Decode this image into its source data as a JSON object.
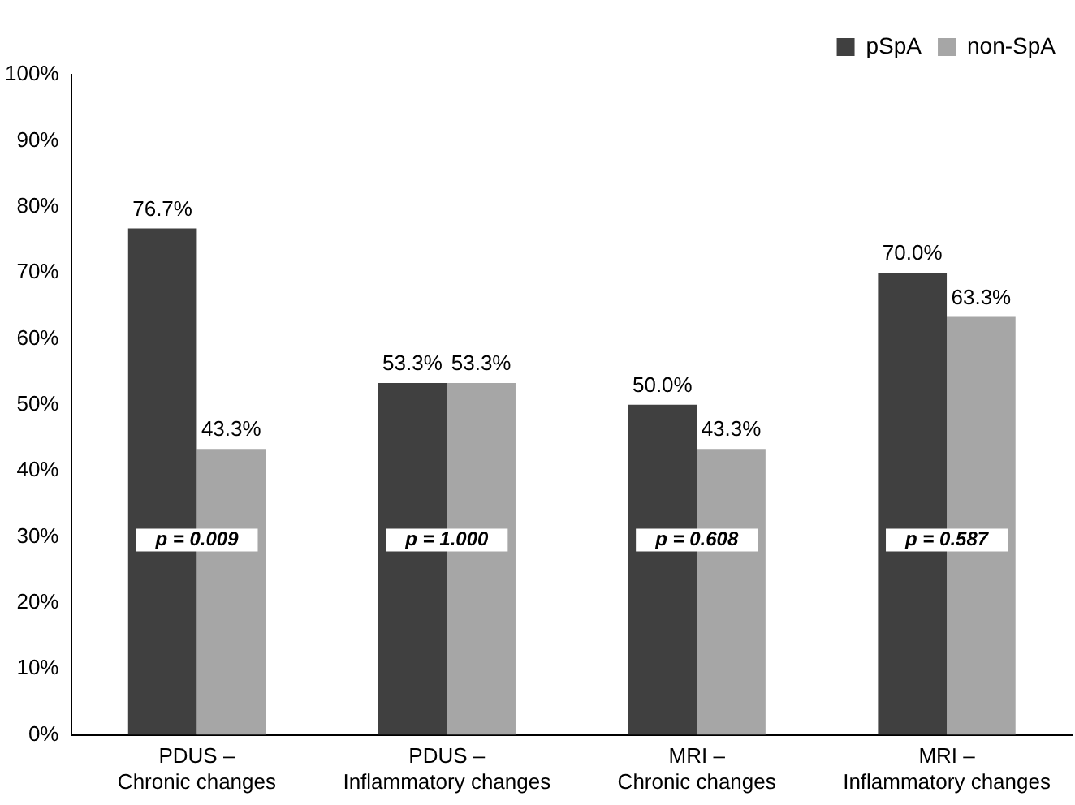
{
  "chart_data": {
    "type": "bar",
    "categories": [
      "PDUS –\nChronic changes",
      "PDUS –\nInflammatory changes",
      "MRI –\nChronic changes",
      "MRI –\nInflammatory changes"
    ],
    "series": [
      {
        "name": "pSpA",
        "color": "#404040",
        "values": [
          76.7,
          53.3,
          50.0,
          70.0
        ],
        "value_labels": [
          "76.7%",
          "53.3%",
          "50.0%",
          "70.0%"
        ]
      },
      {
        "name": "non-SpA",
        "color": "#a6a6a6",
        "values": [
          43.3,
          53.3,
          43.3,
          63.3
        ],
        "value_labels": [
          "43.3%",
          "53.3%",
          "43.3%",
          "63.3%"
        ]
      }
    ],
    "ylim": [
      0,
      100
    ],
    "yticks": [
      {
        "value": 0,
        "label": "0%"
      },
      {
        "value": 10,
        "label": "10%"
      },
      {
        "value": 20,
        "label": "20%"
      },
      {
        "value": 30,
        "label": "30%"
      },
      {
        "value": 40,
        "label": "40%"
      },
      {
        "value": 50,
        "label": "50%"
      },
      {
        "value": 60,
        "label": "60%"
      },
      {
        "value": 70,
        "label": "70%"
      },
      {
        "value": 80,
        "label": "80%"
      },
      {
        "value": 90,
        "label": "90%"
      },
      {
        "value": 100,
        "label": "100%"
      }
    ],
    "annotations": [
      {
        "text": "p = 0.009",
        "x": "PDUS –\nChronic changes",
        "y": 29.5
      },
      {
        "text": "p = 1.000",
        "x": "PDUS –\nInflammatory changes",
        "y": 29.5
      },
      {
        "text": "p = 0.608",
        "x": "MRI –\nChronic changes",
        "y": 29.5
      },
      {
        "text": "p = 0.587",
        "x": "MRI –\nInflammatory changes",
        "y": 29.5
      }
    ],
    "grid": false,
    "legend": "top right"
  }
}
